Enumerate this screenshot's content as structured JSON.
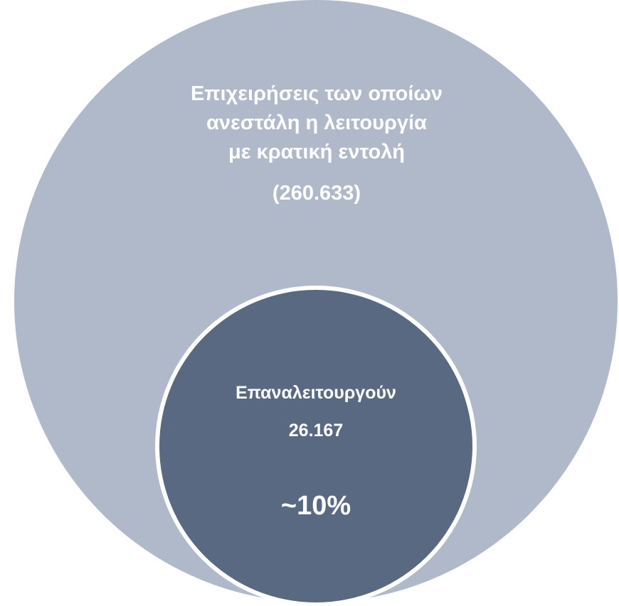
{
  "outer": {
    "label_lines": [
      "Επιχειρήσεις των οποίων",
      "ανεστάλη η λειτουργία",
      "με κρατική εντολή"
    ],
    "count": "(260.633)",
    "color": "#b0b9c9"
  },
  "inner": {
    "label": "Επαναλειτουργούν",
    "count": "26.167",
    "percent": "~10%",
    "color": "#596982",
    "border_color": "#ffffff"
  }
}
